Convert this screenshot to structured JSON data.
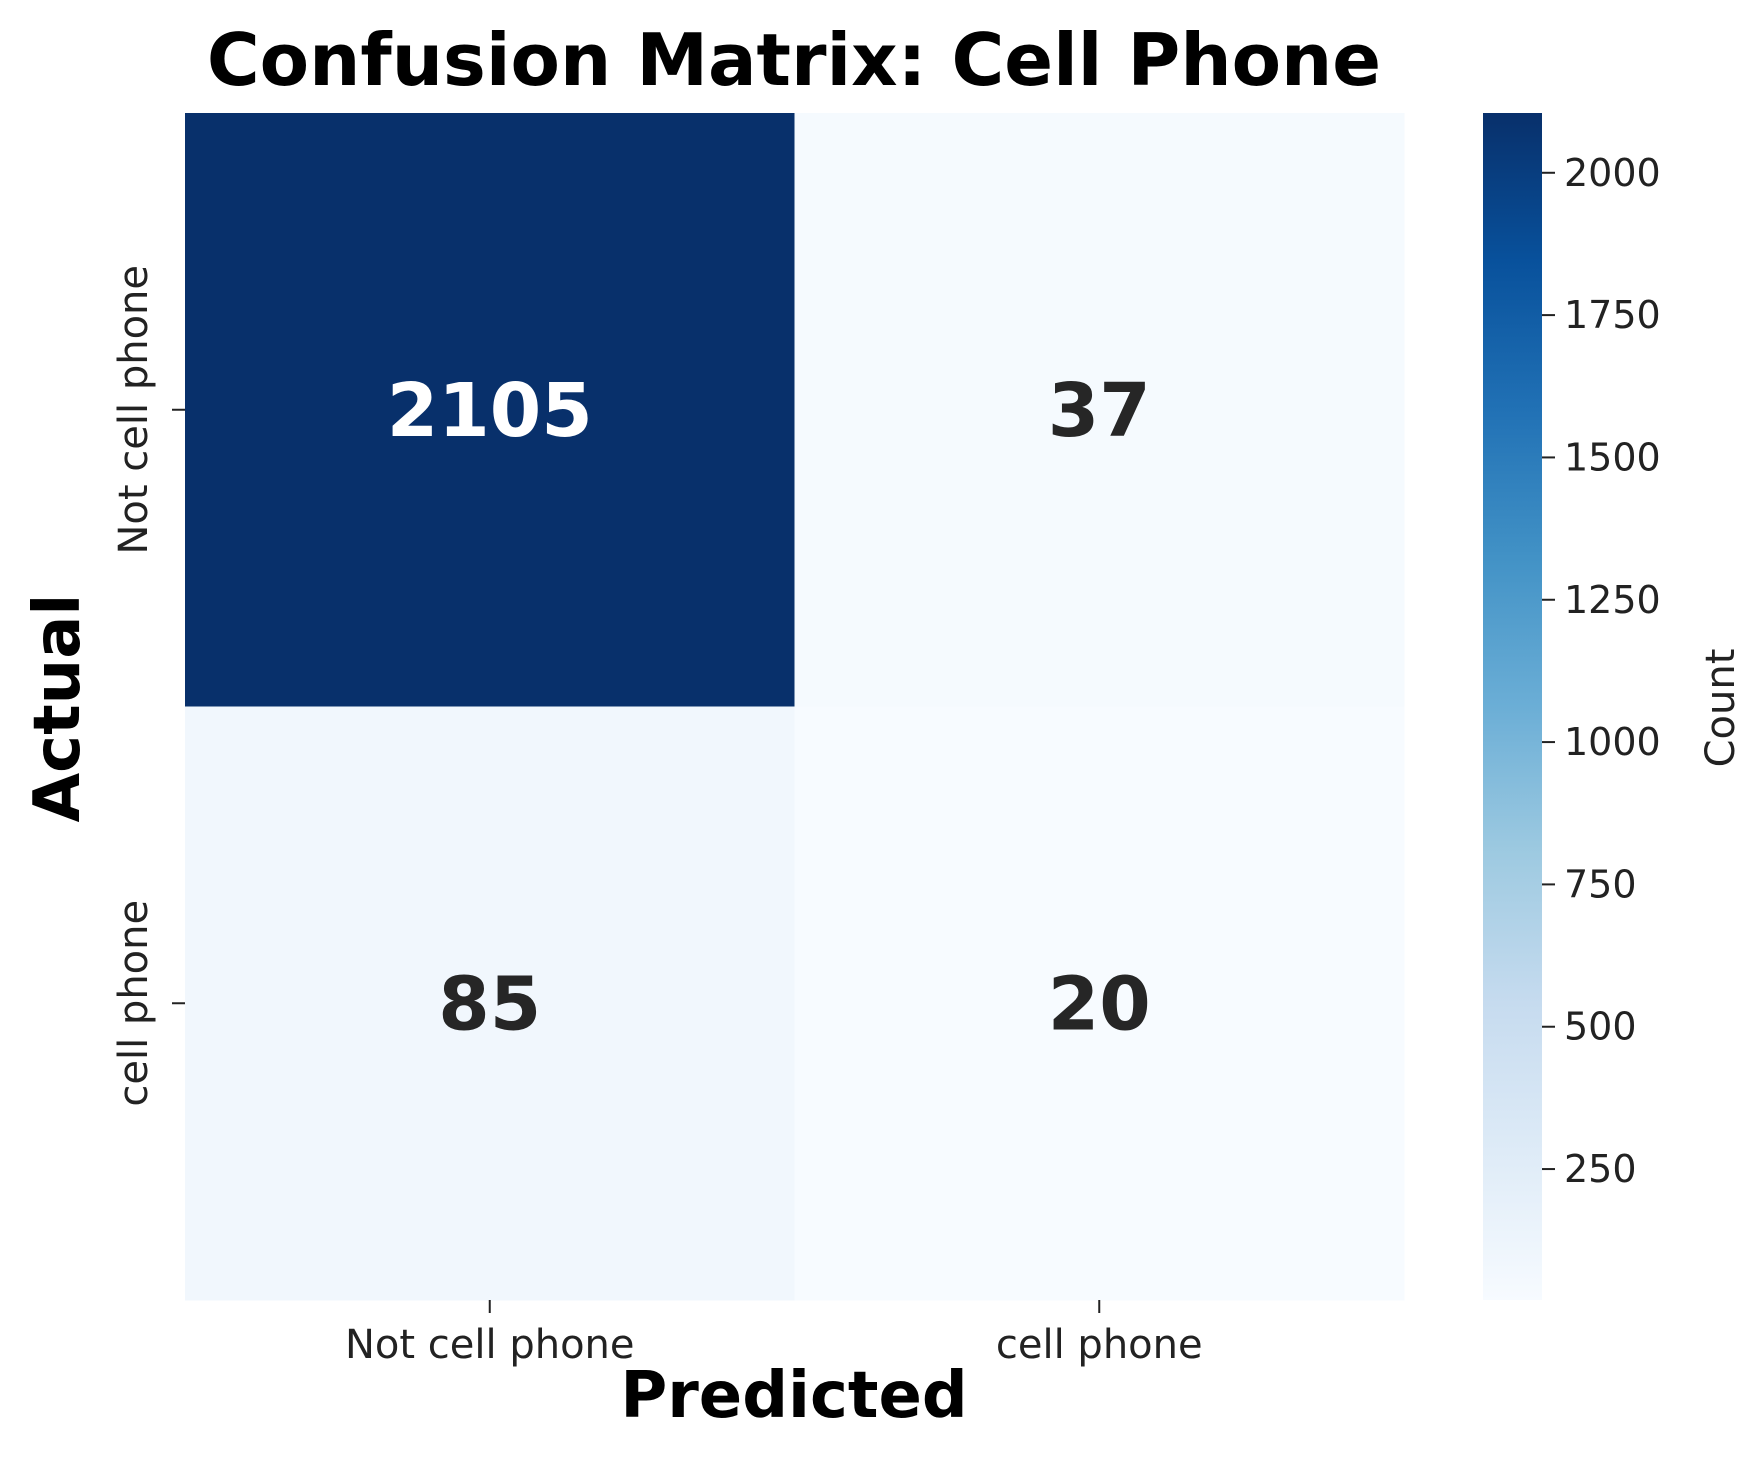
{
  "chart_data": {
    "type": "heatmap",
    "title": "Confusion Matrix: Cell Phone",
    "xlabel": "Predicted",
    "ylabel": "Actual",
    "x_categories": [
      "Not cell phone",
      "cell phone"
    ],
    "y_categories": [
      "Not cell phone",
      "cell phone"
    ],
    "values": [
      [
        2105,
        37
      ],
      [
        85,
        20
      ]
    ],
    "colorbar": {
      "label": "Count",
      "range": [
        20,
        2105
      ],
      "ticks": [
        250,
        500,
        750,
        1000,
        1250,
        1500,
        1750,
        2000
      ],
      "colormap": "Blues"
    },
    "legend": "none",
    "grid": false
  }
}
